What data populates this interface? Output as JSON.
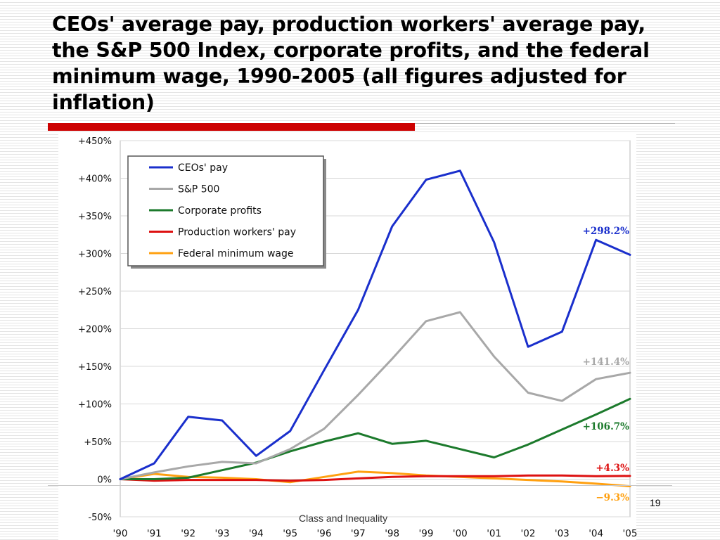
{
  "slide": {
    "title": "CEOs' average pay, production workers' average pay, the S&P 500 Index, corporate profits, and the federal minimum wage, 1990-2005 (all figures adjusted for inflation)",
    "footer": "Class and Inequality",
    "page_number": "19"
  },
  "chart_data": {
    "type": "line",
    "title": "",
    "xlabel": "",
    "ylabel": "",
    "x": [
      "'90",
      "'91",
      "'92",
      "'93",
      "'94",
      "'95",
      "'96",
      "'97",
      "'98",
      "'99",
      "'00",
      "'01",
      "'02",
      "'03",
      "'04",
      "'05"
    ],
    "y_ticks": [
      "+450%",
      "+400%",
      "+350%",
      "+300%",
      "+250%",
      "+200%",
      "+150%",
      "+100%",
      "+50%",
      "0%",
      "-50%"
    ],
    "ylim": [
      -50,
      450
    ],
    "grid": true,
    "legend_position": "top-left",
    "series": [
      {
        "name": "CEOs' pay",
        "color": "#1a2fcc",
        "end_label": "+298.2%",
        "values": [
          0,
          21,
          83,
          78,
          31,
          64,
          145,
          225,
          336,
          398,
          410,
          315,
          176,
          196,
          318,
          298.2
        ]
      },
      {
        "name": "S&P 500",
        "color": "#a8a8a8",
        "end_label": "+141.4%",
        "values": [
          0,
          9,
          17,
          23,
          21,
          40,
          67,
          112,
          160,
          210,
          222,
          163,
          115,
          104,
          133,
          141.4
        ]
      },
      {
        "name": "Corporate profits",
        "color": "#1c7a2c",
        "end_label": "+106.7%",
        "values": [
          0,
          0,
          2,
          12,
          22,
          37,
          50,
          61,
          47,
          51,
          40,
          29,
          46,
          66,
          86,
          106.7
        ]
      },
      {
        "name": "Production workers' pay",
        "color": "#dd1111",
        "end_label": "+4.3%",
        "values": [
          0,
          -2,
          -1,
          -1,
          -1,
          -2,
          -1,
          1,
          3,
          4,
          4,
          4,
          5,
          5,
          4,
          4.3
        ]
      },
      {
        "name": "Federal minimum wage",
        "color": "#ffa010",
        "end_label": "−9.3%",
        "values": [
          0,
          7,
          3,
          2,
          0,
          -4,
          3,
          10,
          8,
          5,
          3,
          1,
          -1,
          -3,
          -6,
          -9.3
        ]
      }
    ]
  }
}
